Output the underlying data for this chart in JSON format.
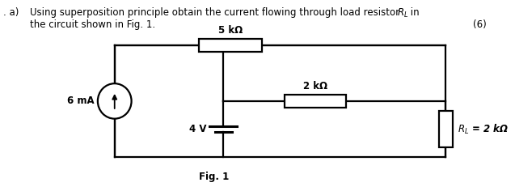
{
  "bg_color": "#ffffff",
  "line_color": "#000000",
  "text_color": "#000000",
  "title_line1_prefix": ". a)",
  "title_line1_main": "Using superposition principle obtain the current flowing through load resistor  ",
  "title_line1_rl": "$R_L$",
  "title_line1_suffix": " in",
  "title_line2": "the circuit shown in Fig. 1.",
  "mark": "(6)",
  "fig_label": "Fig. 1",
  "res5k_label": "5 kΩ",
  "res2k_label": "2 kΩ",
  "rl_label": "$R_L$ = 2 kΩ",
  "v_label": "4 V",
  "i_label": "6 mA"
}
